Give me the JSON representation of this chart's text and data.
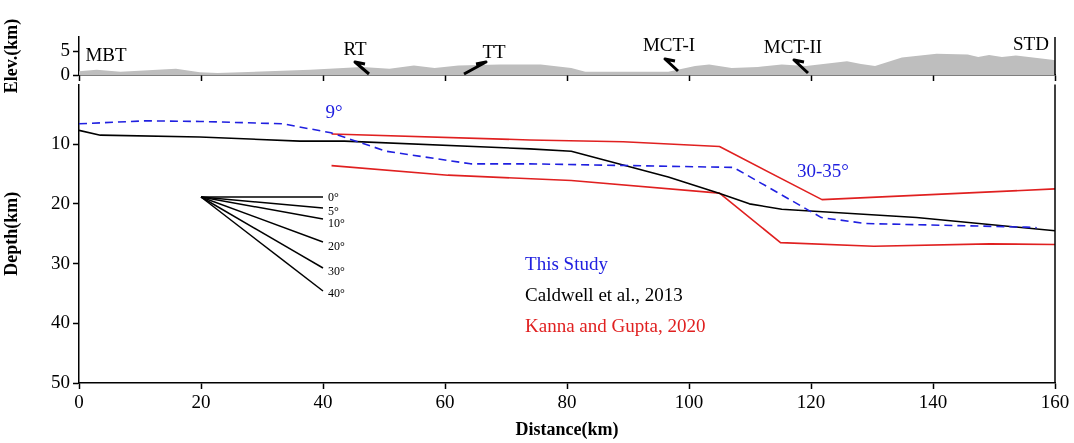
{
  "chart_data": [
    {
      "type": "area",
      "ylabel": "Elev.(km)",
      "xlim": [
        0,
        160
      ],
      "xticks": [
        0,
        20,
        40,
        60,
        80,
        100,
        120,
        140,
        160
      ],
      "ylim": [
        0,
        8
      ],
      "yticks": [
        0,
        5
      ],
      "tick_labels": "y",
      "grid": false,
      "series": [
        {
          "color": "#bebebe",
          "x": [
            0,
            2.9,
            6.8,
            15.9,
            19.8,
            22.7,
            37.9,
            46.4,
            50.9,
            54.9,
            58.3,
            62.2,
            69,
            75.7,
            80.7,
            83,
            96.6,
            101,
            103.3,
            107,
            111.3,
            115.2,
            119.2,
            125.9,
            128.2,
            130.5,
            134.9,
            140.6,
            145.7,
            147.4,
            149.2,
            151.3,
            153.6,
            159.5,
            160
          ],
          "values": [
            0.8,
            1.1,
            0.7,
            1.3,
            0.6,
            0.4,
            1.1,
            1.7,
            1.3,
            2.0,
            1.5,
            2.0,
            2.2,
            2.2,
            1.5,
            0.7,
            0.7,
            1.9,
            2.2,
            1.5,
            1.7,
            2.2,
            1.9,
            2.9,
            2.3,
            1.9,
            3.7,
            4.5,
            4.3,
            3.8,
            4.2,
            3.8,
            4.1,
            3.2,
            3.1
          ]
        }
      ],
      "annotations": [
        "MBT",
        "RT",
        "TT",
        "MCT-I",
        "MCT-II",
        "STD"
      ]
    },
    {
      "type": "line",
      "xlabel": "Distance(km)",
      "ylabel": "Depth(km)",
      "xlim": [
        0,
        160
      ],
      "xticks": [
        0,
        20,
        40,
        60,
        80,
        100,
        120,
        140,
        160
      ],
      "ylim": [
        50,
        0
      ],
      "yticks": [
        10,
        20,
        30,
        40,
        50
      ],
      "grid": false,
      "legend": "center",
      "marker": "none",
      "series": [
        {
          "name": "This Study",
          "color": "#2020e0",
          "line_style": "dashed",
          "x": [
            0,
            10.8,
            19.8,
            33.4,
            41.3,
            50.4,
            64.2,
            73.9,
            107.3,
            121.7,
            129,
            155.3,
            157
          ],
          "values": [
            6.6,
            6.1,
            6.2,
            6.6,
            8.1,
            11.2,
            13.3,
            13.3,
            13.9,
            22.3,
            23.3,
            23.9,
            24
          ]
        },
        {
          "name": "Caldwell et al., 2013",
          "color": "#000000",
          "line_style": "solid",
          "x": [
            0,
            3.5,
            19.8,
            36.2,
            43.5,
            73.9,
            80.7,
            96.6,
            104.8,
            109.9,
            115.2,
            137.3,
            160
          ],
          "values": [
            7.7,
            8.5,
            8.8,
            9.5,
            9.5,
            10.8,
            11.2,
            15.5,
            18.2,
            20,
            20.9,
            22.3,
            24.5
          ]
        },
        {
          "name": "Kanna and Gupta, 2020",
          "color": "#e02020",
          "line_style": "solid",
          "x": [
            41.4,
            73.9,
            89.2,
            105,
            121.8,
            160
          ],
          "values": [
            8.3,
            9.3,
            9.6,
            10.4,
            19.3,
            17.5
          ]
        },
        {
          "color": "#e02020",
          "line_style": "solid",
          "x": [
            41.4,
            60.5,
            80.7,
            105,
            115,
            130.3,
            149.3,
            160
          ],
          "values": [
            13.6,
            15.2,
            16.1,
            18.2,
            26.5,
            27.1,
            26.7,
            26.8
          ]
        }
      ],
      "annotations": [
        "9°",
        "30-35°",
        "0°",
        "5°",
        "10°",
        "20°",
        "30°",
        "40°"
      ]
    }
  ]
}
